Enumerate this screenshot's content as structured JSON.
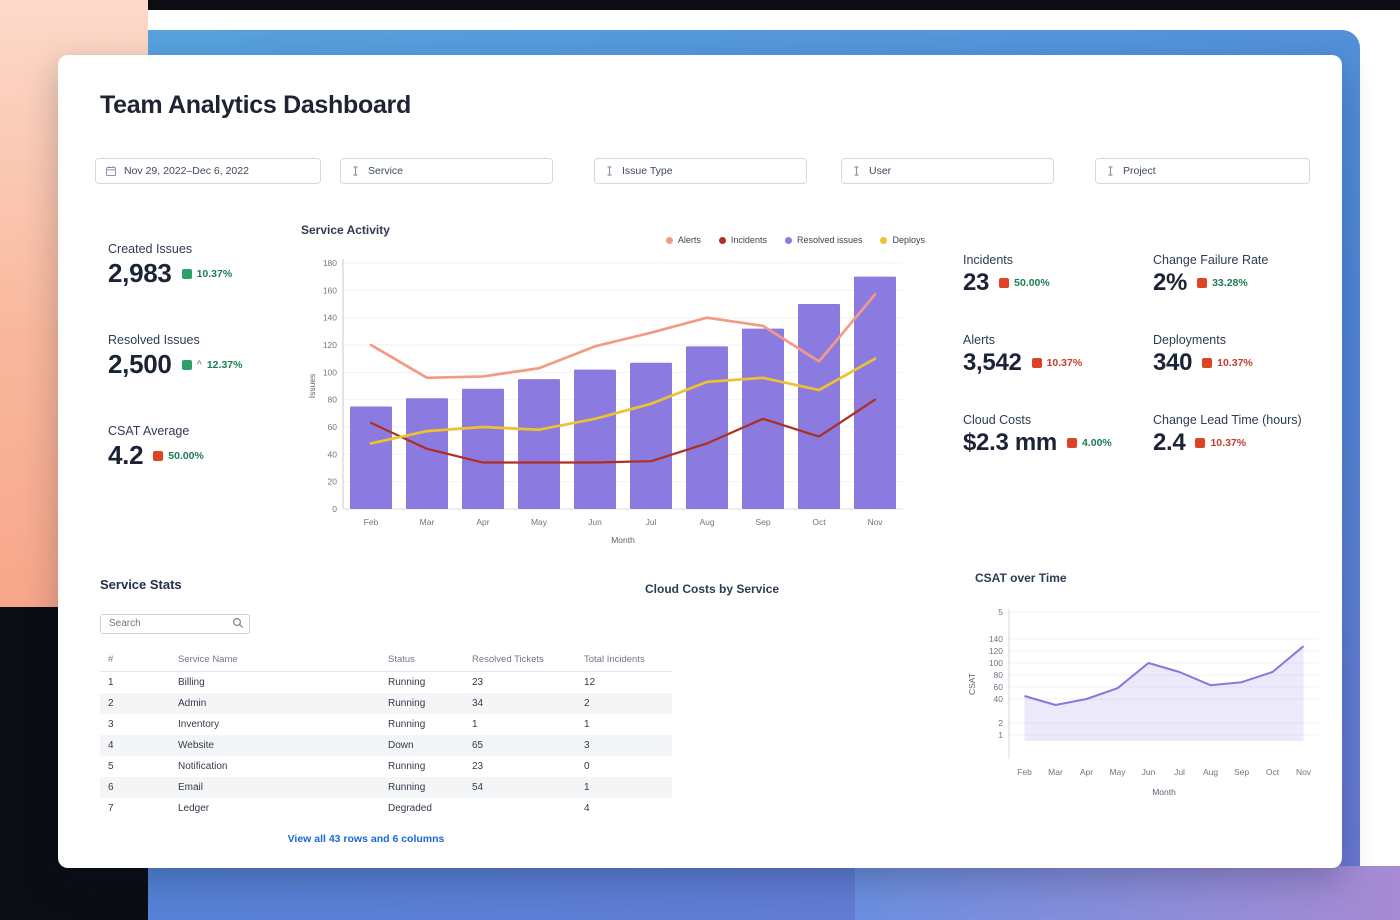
{
  "page": {
    "title": "Team Analytics Dashboard"
  },
  "filters": {
    "date_range": "Nov 29, 2022–Dec 6, 2022",
    "dropdowns": [
      {
        "label": "Service"
      },
      {
        "label": "Issue Type"
      },
      {
        "label": "User"
      },
      {
        "label": "Project"
      }
    ]
  },
  "kpis_left": [
    {
      "label": "Created Issues",
      "value": "2,983",
      "delta": "10.37%",
      "delta_color": "green",
      "icon_color": "green",
      "caret": false
    },
    {
      "label": "Resolved Issues",
      "value": "2,500",
      "delta": "12.37%",
      "delta_color": "green",
      "icon_color": "green",
      "caret": true
    },
    {
      "label": "CSAT Average",
      "value": "4.2",
      "delta": "50.00%",
      "delta_color": "green",
      "icon_color": "red",
      "caret": false
    }
  ],
  "kpis_right": [
    {
      "label": "Incidents",
      "value": "23",
      "delta": "50.00%",
      "delta_color": "green",
      "icon_color": "red",
      "caret": false
    },
    {
      "label": "Change Failure Rate",
      "value": "2%",
      "delta": "33.28%",
      "delta_color": "green",
      "icon_color": "red",
      "caret": false
    },
    {
      "label": "Alerts",
      "value": "3,542",
      "delta": "10.37%",
      "delta_color": "red",
      "icon_color": "red",
      "caret": false
    },
    {
      "label": "Deployments",
      "value": "340",
      "delta": "10.37%",
      "delta_color": "red",
      "icon_color": "red",
      "caret": false
    },
    {
      "label": "Cloud Costs",
      "value": "$2.3 mm",
      "delta": "4.00%",
      "delta_color": "green",
      "icon_color": "red",
      "caret": false
    },
    {
      "label": "Change Lead Time (hours)",
      "value": "2.4",
      "delta": "10.37%",
      "delta_color": "red",
      "icon_color": "red",
      "caret": false
    }
  ],
  "service_stats": {
    "title": "Service Stats",
    "search_placeholder": "Search",
    "columns": [
      "#",
      "Service Name",
      "Status",
      "Resolved Tickets",
      "Total Incidents"
    ],
    "rows": [
      [
        "1",
        "Billing",
        "Running",
        "23",
        "12"
      ],
      [
        "2",
        "Admin",
        "Running",
        "34",
        "2"
      ],
      [
        "3",
        "Inventory",
        "Running",
        "1",
        "1"
      ],
      [
        "4",
        "Website",
        "Down",
        "65",
        "3"
      ],
      [
        "5",
        "Notification",
        "Running",
        "23",
        "0"
      ],
      [
        "6",
        "Email",
        "Running",
        "54",
        "1"
      ],
      [
        "7",
        "Ledger",
        "Degraded",
        "",
        "4"
      ]
    ],
    "footer_link": "View all 43 rows and 6 columns"
  },
  "cloud_costs_panel": {
    "title": "Cloud Costs by Service"
  },
  "chart_data": [
    {
      "type": "bar",
      "title": "Service Activity",
      "xlabel": "Month",
      "ylabel": "Issues",
      "ylim": [
        0,
        180
      ],
      "ytick_step": 20,
      "grid": true,
      "legend_position": "top-right",
      "categories": [
        "Feb",
        "Mar",
        "Apr",
        "May",
        "Jun",
        "Jul",
        "Aug",
        "Sep",
        "Oct",
        "Nov"
      ],
      "series": [
        {
          "name": "Alerts",
          "type": "line",
          "color": "#f49a84",
          "values": [
            120,
            96,
            97,
            103,
            119,
            129,
            140,
            134,
            108,
            157
          ]
        },
        {
          "name": "Incidents",
          "type": "line",
          "color": "#ae2f20",
          "values": [
            63,
            44,
            34,
            34,
            34,
            35,
            48,
            66,
            53,
            80
          ]
        },
        {
          "name": "Resolved issues",
          "type": "bar",
          "color": "#8b7be0",
          "values": [
            75,
            81,
            88,
            95,
            102,
            107,
            119,
            132,
            150,
            170
          ]
        },
        {
          "name": "Deploys",
          "type": "line",
          "color": "#eec22e",
          "values": [
            48,
            57,
            60,
            58,
            66,
            77,
            93,
            96,
            87,
            110
          ]
        }
      ]
    },
    {
      "type": "area",
      "title": "CSAT over Time",
      "xlabel": "Month",
      "ylabel": "CSAT",
      "color": "#8678dd",
      "grid": true,
      "categories": [
        "Feb",
        "Mar",
        "Apr",
        "May",
        "Jun",
        "Jul",
        "Aug",
        "Sep",
        "Oct",
        "Nov"
      ],
      "yticks": [
        "5",
        "140",
        "120",
        "100",
        "80",
        "60",
        "40",
        "2",
        "1"
      ],
      "values": [
        45,
        30,
        40,
        58,
        100,
        85,
        63,
        68,
        85,
        128
      ]
    }
  ],
  "colors": {
    "badge_green": "#2aa06a",
    "badge_red": "#dd4426",
    "delta_green": "#1d7d52",
    "delta_red": "#c43d2b",
    "link": "#1868db",
    "status_negative": "#d9482e",
    "accent_purple": "#8b7be0"
  },
  "icons": {
    "date_filter": "calendar-icon",
    "dropdown": "i-beam-cursor-icon",
    "search": "magnifier-icon",
    "kpi_delta": "colored-square-icon",
    "kpi_caret": "^"
  }
}
